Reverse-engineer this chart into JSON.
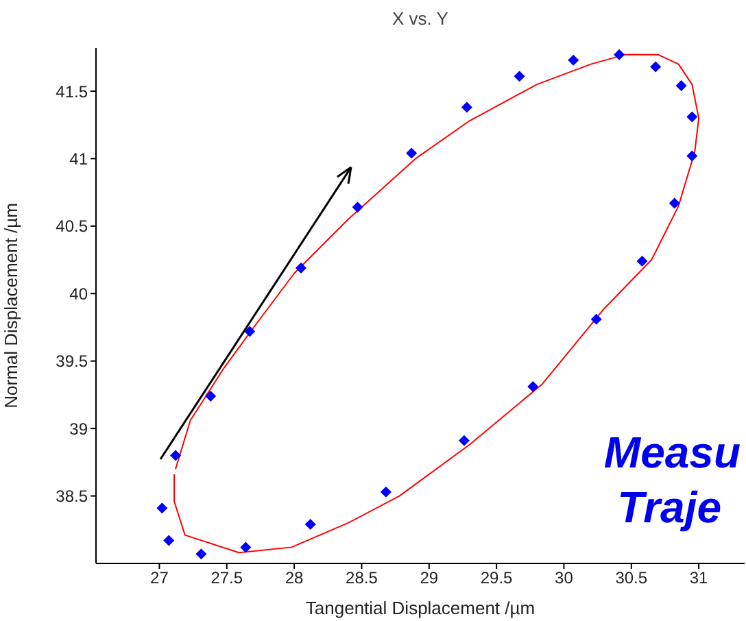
{
  "chart_data": {
    "type": "scatter",
    "title": "X vs. Y",
    "xlabel": "Tangential Displacement /µm",
    "ylabel": "Normal Displacement /µm",
    "xlim": [
      26.53,
      31.34
    ],
    "ylim": [
      38.0,
      41.82
    ],
    "xticks": [
      27,
      27.5,
      28,
      28.5,
      29,
      29.5,
      30,
      30.5,
      31
    ],
    "yticks": [
      38.5,
      39,
      39.5,
      40,
      40.5,
      41,
      41.5
    ],
    "grid": false,
    "legend": false,
    "annotations": [
      "Measu",
      "Traje"
    ],
    "series": [
      {
        "type": "scatter",
        "color": "#0000ff",
        "marker": "diamond",
        "x": [
          28.05,
          28.47,
          28.87,
          29.28,
          29.67,
          30.07,
          30.41,
          30.68,
          30.87,
          30.95,
          30.95,
          30.82,
          30.58,
          30.24,
          29.77,
          29.26,
          28.68,
          28.12,
          27.64,
          27.31,
          27.07,
          27.02,
          27.12,
          27.38,
          27.67
        ],
        "values": [
          40.19,
          40.64,
          41.04,
          41.38,
          41.61,
          41.73,
          41.77,
          41.68,
          41.54,
          41.31,
          41.02,
          40.67,
          40.24,
          39.81,
          39.31,
          38.91,
          38.53,
          38.29,
          38.12,
          38.07,
          38.17,
          38.41,
          38.8,
          39.24,
          39.72
        ]
      },
      {
        "type": "line",
        "color": "#ff0000",
        "marker": "none",
        "line_style": "solid",
        "x": [
          27.12,
          27.23,
          27.48,
          27.7,
          28.0,
          28.4,
          28.9,
          29.3,
          29.8,
          30.2,
          30.45,
          30.7,
          30.85,
          30.95,
          31.0,
          30.97,
          30.85,
          30.65,
          30.3,
          29.84,
          29.3,
          28.78,
          28.4,
          27.98,
          27.59,
          27.19,
          27.11,
          27.11
        ],
        "values": [
          38.7,
          39.06,
          39.45,
          39.75,
          40.15,
          40.55,
          41.0,
          41.28,
          41.55,
          41.7,
          41.77,
          41.77,
          41.7,
          41.55,
          41.3,
          41.05,
          40.65,
          40.25,
          39.89,
          39.33,
          38.88,
          38.5,
          38.3,
          38.12,
          38.08,
          38.21,
          38.46,
          38.66
        ]
      }
    ]
  }
}
